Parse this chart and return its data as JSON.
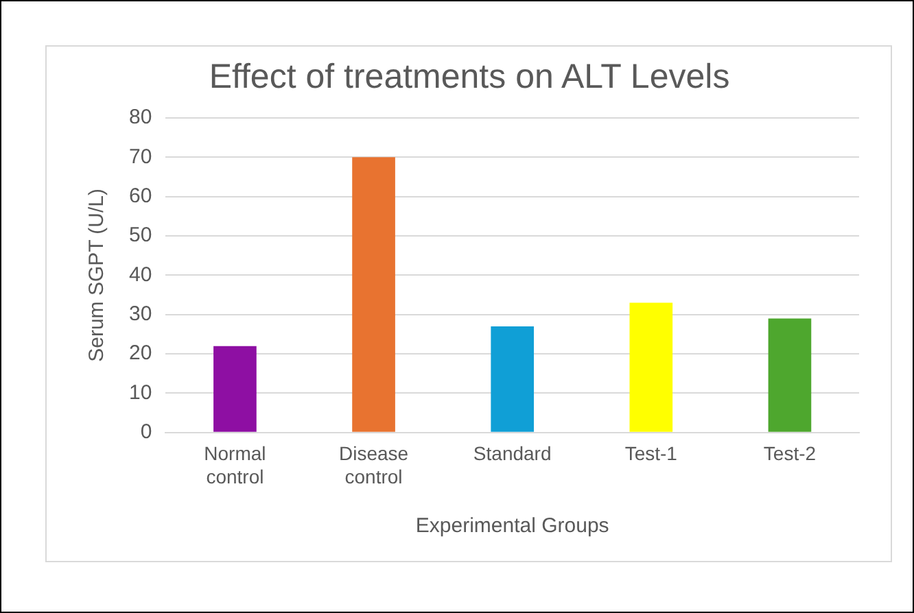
{
  "chart_data": {
    "type": "bar",
    "title": "Effect of treatments on ALT Levels",
    "xlabel": "Experimental Groups",
    "ylabel": "Serum SGPT (U/L)",
    "categories": [
      "Normal control",
      "Disease control",
      "Standard",
      "Test-1",
      "Test-2"
    ],
    "values": [
      22,
      70,
      27,
      33,
      29
    ],
    "colors": [
      "#8e0fa3",
      "#e87330",
      "#109fd6",
      "#ffff00",
      "#4ea72e"
    ],
    "ylim": [
      0,
      80
    ],
    "yticks": [
      0,
      10,
      20,
      30,
      40,
      50,
      60,
      70,
      80
    ],
    "grid": "y",
    "legend": false
  }
}
